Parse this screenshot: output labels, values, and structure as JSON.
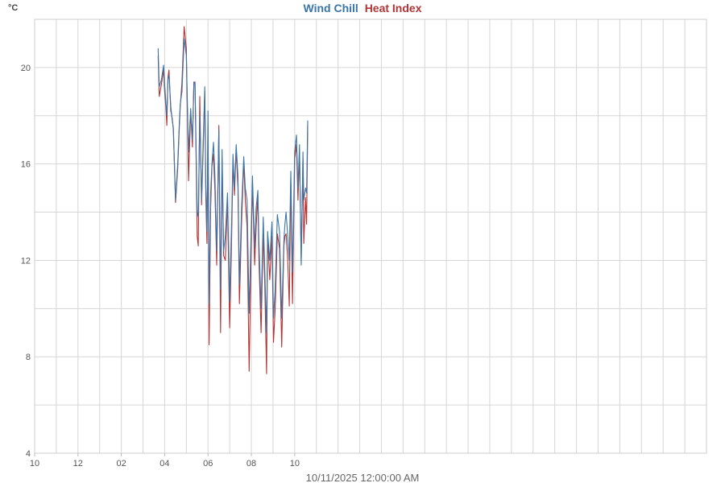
{
  "chart_data": {
    "type": "line",
    "title_parts": [
      "Wind Chill",
      "Heat Index"
    ],
    "xlabel": "10/11/2025 12:00:00 AM",
    "ylabel": "°C",
    "x_unit": "hours since 10/10/2025 10:00 PM",
    "xlim": [
      0,
      31
    ],
    "ylim": [
      4,
      22
    ],
    "x_ticks": [
      {
        "x": 0,
        "label": "10"
      },
      {
        "x": 2,
        "label": "12"
      },
      {
        "x": 4,
        "label": "02"
      },
      {
        "x": 6,
        "label": "04"
      },
      {
        "x": 8,
        "label": "06"
      },
      {
        "x": 10,
        "label": "08"
      },
      {
        "x": 12,
        "label": "10"
      }
    ],
    "y_ticks": [
      4,
      8,
      12,
      16,
      20
    ],
    "grid": true,
    "legend": "title",
    "series": [
      {
        "name": "Wind Chill",
        "color": "#3a75a8",
        "x": [
          5.7,
          5.75,
          5.85,
          5.95,
          6.0,
          6.05,
          6.1,
          6.15,
          6.2,
          6.28,
          6.35,
          6.4,
          6.5,
          6.6,
          6.68,
          6.72,
          6.8,
          6.9,
          7.0,
          7.1,
          7.2,
          7.28,
          7.35,
          7.4,
          7.5,
          7.55,
          7.62,
          7.7,
          7.78,
          7.85,
          7.9,
          7.95,
          8.0,
          8.05,
          8.12,
          8.18,
          8.25,
          8.32,
          8.4,
          8.5,
          8.58,
          8.65,
          8.72,
          8.8,
          8.9,
          9.0,
          9.08,
          9.15,
          9.22,
          9.3,
          9.38,
          9.45,
          9.55,
          9.65,
          9.72,
          9.8,
          9.9,
          10.0,
          10.05,
          10.15,
          10.22,
          10.3,
          10.35,
          10.45,
          10.55,
          10.62,
          10.7,
          10.75,
          10.85,
          10.95,
          11.02,
          11.1,
          11.2,
          11.3,
          11.4,
          11.5,
          11.55,
          11.6,
          11.68,
          11.75,
          11.82,
          11.9,
          12.0,
          12.08,
          12.15,
          12.22,
          12.3,
          12.38,
          12.42,
          12.5,
          12.55,
          12.6
        ],
        "values": [
          20.8,
          19.2,
          19.5,
          20.1,
          19.3,
          18.6,
          18.0,
          19.5,
          19.7,
          18.4,
          17.8,
          17.5,
          14.5,
          16.0,
          17.8,
          18.5,
          19.0,
          21.2,
          20.5,
          16.5,
          18.3,
          17.0,
          19.4,
          19.3,
          14.0,
          13.8,
          18.0,
          14.5,
          17.0,
          19.2,
          15.0,
          13.2,
          18.2,
          10.2,
          14.8,
          16.0,
          16.9,
          15.5,
          12.4,
          17.4,
          10.8,
          16.6,
          12.4,
          13.0,
          14.8,
          10.3,
          13.2,
          16.4,
          15.0,
          16.8,
          15.5,
          11.0,
          14.2,
          16.3,
          15.0,
          14.5,
          9.8,
          13.5,
          15.5,
          12.5,
          14.2,
          14.9,
          12.8,
          10.0,
          13.8,
          11.6,
          9.0,
          13.2,
          12.0,
          13.6,
          9.6,
          10.8,
          13.9,
          13.2,
          9.6,
          12.8,
          13.5,
          14.0,
          13.0,
          12.0,
          15.7,
          11.5,
          16.5,
          17.2,
          15.0,
          16.8,
          11.8,
          16.5,
          14.5,
          15.0,
          14.8,
          17.8
        ]
      },
      {
        "name": "Heat Index",
        "color": "#b23434",
        "x": [
          5.7,
          5.75,
          5.85,
          5.95,
          6.0,
          6.05,
          6.1,
          6.15,
          6.2,
          6.28,
          6.35,
          6.4,
          6.5,
          6.6,
          6.68,
          6.72,
          6.8,
          6.9,
          7.0,
          7.1,
          7.2,
          7.28,
          7.35,
          7.4,
          7.5,
          7.55,
          7.62,
          7.7,
          7.78,
          7.85,
          7.9,
          7.95,
          8.0,
          8.05,
          8.12,
          8.18,
          8.25,
          8.32,
          8.4,
          8.5,
          8.58,
          8.65,
          8.72,
          8.8,
          8.9,
          9.0,
          9.08,
          9.15,
          9.22,
          9.3,
          9.38,
          9.45,
          9.55,
          9.65,
          9.72,
          9.8,
          9.9,
          10.0,
          10.05,
          10.15,
          10.22,
          10.3,
          10.35,
          10.45,
          10.55,
          10.62,
          10.7,
          10.75,
          10.85,
          10.95,
          11.02,
          11.1,
          11.2,
          11.3,
          11.4,
          11.5,
          11.55,
          11.6,
          11.68,
          11.75,
          11.82,
          11.9,
          12.0,
          12.08,
          12.15,
          12.22,
          12.3,
          12.38,
          12.42,
          12.5,
          12.55,
          12.6
        ],
        "values": [
          20.5,
          18.8,
          19.3,
          19.9,
          19.0,
          18.4,
          17.6,
          19.6,
          19.9,
          18.2,
          17.9,
          17.4,
          14.4,
          15.8,
          17.6,
          18.4,
          19.4,
          21.7,
          20.8,
          15.3,
          18.2,
          16.7,
          19.4,
          19.4,
          13.0,
          12.6,
          18.8,
          14.3,
          16.7,
          19.0,
          14.6,
          12.7,
          17.6,
          8.5,
          14.2,
          15.9,
          16.4,
          14.9,
          11.8,
          17.6,
          9.0,
          16.2,
          12.2,
          12.0,
          14.5,
          9.2,
          12.5,
          16.1,
          14.7,
          16.6,
          15.0,
          10.2,
          13.6,
          16.1,
          14.5,
          13.4,
          7.4,
          12.8,
          15.2,
          11.8,
          13.4,
          14.7,
          12.1,
          9.0,
          13.2,
          11.0,
          7.3,
          13.0,
          11.2,
          13.0,
          8.6,
          10.0,
          13.1,
          12.5,
          8.4,
          12.6,
          13.0,
          13.1,
          12.0,
          10.1,
          15.4,
          10.2,
          16.2,
          16.8,
          14.5,
          16.5,
          12.0,
          16.2,
          12.7,
          14.6,
          13.5,
          17.6
        ]
      }
    ]
  }
}
